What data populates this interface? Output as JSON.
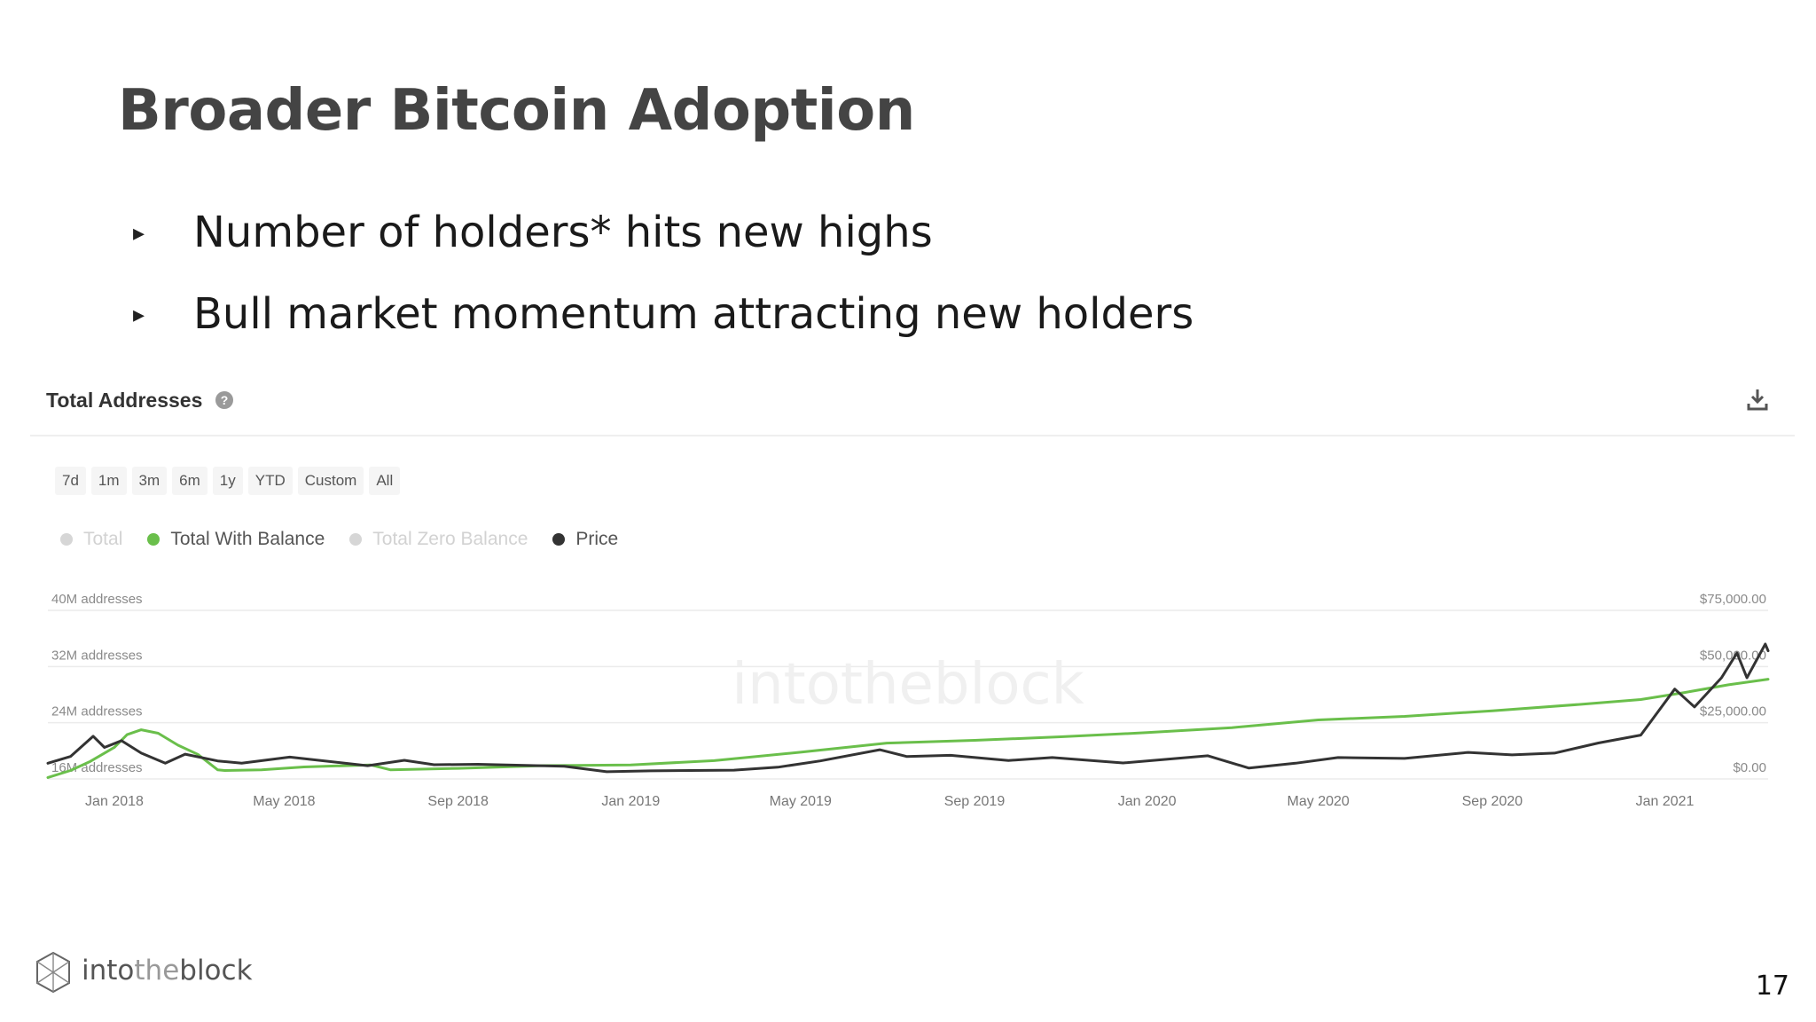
{
  "slide": {
    "title": "Broader Bitcoin Adoption",
    "bullets": [
      "Number of holders* hits new highs",
      "Bull market momentum attracting new holders"
    ],
    "bullet_marker": "▸",
    "page_number": "17"
  },
  "card": {
    "title": "Total Addresses",
    "help_icon": "help-circle-icon",
    "download_icon": "download-icon",
    "range_buttons": [
      "7d",
      "1m",
      "3m",
      "6m",
      "1y",
      "YTD",
      "Custom",
      "All"
    ],
    "legend": [
      {
        "label": "Total",
        "color": "#d6d6d6",
        "active": false
      },
      {
        "label": "Total With Balance",
        "color": "#6abf4b",
        "active": true
      },
      {
        "label": "Total Zero Balance",
        "color": "#d6d6d6",
        "active": false
      },
      {
        "label": "Price",
        "color": "#333333",
        "active": true
      }
    ],
    "watermark": "intotheblock"
  },
  "footer": {
    "logo_text_1": "into",
    "logo_text_2": "the",
    "logo_text_3": "block"
  },
  "chart_data": {
    "type": "line",
    "grid": true,
    "y_left": {
      "ticks": [
        16,
        24,
        32,
        40
      ],
      "tick_labels": [
        "16M addresses",
        "24M addresses",
        "32M addresses",
        "40M addresses"
      ],
      "range": [
        16,
        40
      ]
    },
    "y_right": {
      "ticks": [
        0,
        25000,
        50000,
        75000
      ],
      "tick_labels": [
        "$0.00",
        "$25,000.00",
        "$50,000.00",
        "$75,000.00"
      ],
      "range": [
        0,
        75000
      ]
    },
    "x_range": [
      "2017-11-15",
      "2021-03-15"
    ],
    "x_ticks": [
      {
        "date": "2018-01-01",
        "label": "Jan 2018"
      },
      {
        "date": "2018-05-01",
        "label": "May 2018"
      },
      {
        "date": "2018-09-01",
        "label": "Sep 2018"
      },
      {
        "date": "2019-01-01",
        "label": "Jan 2019"
      },
      {
        "date": "2019-05-01",
        "label": "May 2019"
      },
      {
        "date": "2019-09-01",
        "label": "Sep 2019"
      },
      {
        "date": "2020-01-01",
        "label": "Jan 2020"
      },
      {
        "date": "2020-05-01",
        "label": "May 2020"
      },
      {
        "date": "2020-09-01",
        "label": "Sep 2020"
      },
      {
        "date": "2021-01-01",
        "label": "Jan 2021"
      }
    ],
    "series": [
      {
        "name": "Total With Balance",
        "axis": "left",
        "color": "#6abf4b",
        "points": [
          [
            "2017-11-15",
            16.2
          ],
          [
            "2017-12-01",
            17.2
          ],
          [
            "2017-12-15",
            18.5
          ],
          [
            "2018-01-01",
            20.5
          ],
          [
            "2018-01-10",
            22.3
          ],
          [
            "2018-01-20",
            23.0
          ],
          [
            "2018-02-01",
            22.5
          ],
          [
            "2018-02-15",
            20.8
          ],
          [
            "2018-03-01",
            19.5
          ],
          [
            "2018-03-15",
            17.3
          ],
          [
            "2018-03-20",
            17.2
          ],
          [
            "2018-04-15",
            17.3
          ],
          [
            "2018-05-15",
            17.7
          ],
          [
            "2018-07-01",
            18.0
          ],
          [
            "2018-07-15",
            17.3
          ],
          [
            "2018-09-01",
            17.5
          ],
          [
            "2018-11-01",
            17.9
          ],
          [
            "2019-01-01",
            18.0
          ],
          [
            "2019-03-01",
            18.6
          ],
          [
            "2019-05-01",
            19.8
          ],
          [
            "2019-07-01",
            21.1
          ],
          [
            "2019-09-01",
            21.5
          ],
          [
            "2019-11-01",
            22.0
          ],
          [
            "2020-01-01",
            22.6
          ],
          [
            "2020-03-01",
            23.3
          ],
          [
            "2020-05-01",
            24.4
          ],
          [
            "2020-07-01",
            24.9
          ],
          [
            "2020-09-01",
            25.7
          ],
          [
            "2020-11-01",
            26.6
          ],
          [
            "2020-12-15",
            27.3
          ],
          [
            "2021-01-15",
            28.3
          ],
          [
            "2021-02-15",
            29.4
          ],
          [
            "2021-03-15",
            30.2
          ]
        ]
      },
      {
        "name": "Price",
        "axis": "right",
        "color": "#333333",
        "points": [
          [
            "2017-11-15",
            7000
          ],
          [
            "2017-12-01",
            10000
          ],
          [
            "2017-12-17",
            19000
          ],
          [
            "2017-12-25",
            14000
          ],
          [
            "2018-01-06",
            17000
          ],
          [
            "2018-01-20",
            11500
          ],
          [
            "2018-02-06",
            7000
          ],
          [
            "2018-02-20",
            11000
          ],
          [
            "2018-03-15",
            8000
          ],
          [
            "2018-04-01",
            7000
          ],
          [
            "2018-05-05",
            9700
          ],
          [
            "2018-06-29",
            5900
          ],
          [
            "2018-07-25",
            8300
          ],
          [
            "2018-08-15",
            6300
          ],
          [
            "2018-09-15",
            6500
          ],
          [
            "2018-11-15",
            5600
          ],
          [
            "2018-12-15",
            3200
          ],
          [
            "2019-01-15",
            3600
          ],
          [
            "2019-03-15",
            3900
          ],
          [
            "2019-04-15",
            5200
          ],
          [
            "2019-05-15",
            8000
          ],
          [
            "2019-06-26",
            13000
          ],
          [
            "2019-07-15",
            10000
          ],
          [
            "2019-08-15",
            10500
          ],
          [
            "2019-09-25",
            8200
          ],
          [
            "2019-10-26",
            9500
          ],
          [
            "2019-12-15",
            7100
          ],
          [
            "2020-02-13",
            10300
          ],
          [
            "2020-03-13",
            4800
          ],
          [
            "2020-04-15",
            7000
          ],
          [
            "2020-05-15",
            9500
          ],
          [
            "2020-07-01",
            9100
          ],
          [
            "2020-08-15",
            11800
          ],
          [
            "2020-09-15",
            10700
          ],
          [
            "2020-10-15",
            11500
          ],
          [
            "2020-11-15",
            16000
          ],
          [
            "2020-12-15",
            19500
          ],
          [
            "2021-01-08",
            40000
          ],
          [
            "2021-01-22",
            32000
          ],
          [
            "2021-02-10",
            45000
          ],
          [
            "2021-02-21",
            56000
          ],
          [
            "2021-02-28",
            45000
          ],
          [
            "2021-03-13",
            60000
          ],
          [
            "2021-03-15",
            57000
          ]
        ]
      }
    ]
  }
}
